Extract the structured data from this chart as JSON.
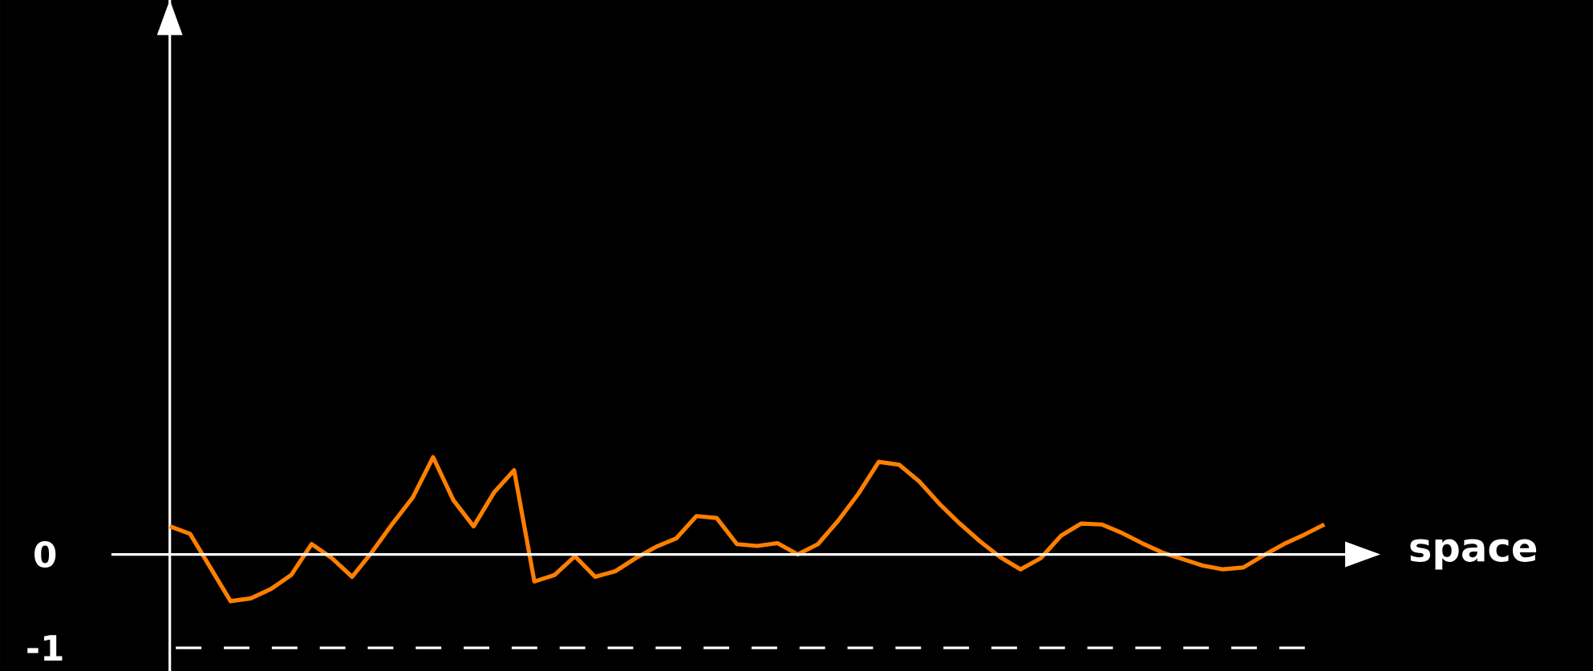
{
  "chart_data": {
    "type": "line",
    "xlabel": "space",
    "categories": [
      null,
      null,
      null,
      null,
      null,
      null,
      null,
      null,
      null,
      null,
      null,
      null,
      null,
      null,
      null,
      null,
      null,
      null,
      null,
      null,
      null,
      null,
      null,
      null,
      null,
      null,
      null,
      null,
      null,
      null,
      null,
      null,
      null,
      null,
      null,
      null,
      null,
      null,
      null,
      null,
      null,
      null,
      null,
      null,
      null,
      null,
      null,
      null,
      null,
      null,
      null,
      null,
      null,
      null,
      null,
      null,
      null,
      null
    ],
    "values": [
      0.3,
      0.22,
      -0.14,
      -0.5,
      -0.47,
      -0.37,
      -0.22,
      0.11,
      -0.04,
      -0.24,
      0.03,
      0.33,
      0.61,
      1.04,
      0.58,
      0.3,
      0.66,
      0.9,
      -0.29,
      -0.22,
      -0.02,
      -0.24,
      -0.18,
      -0.04,
      0.08,
      0.17,
      0.41,
      0.39,
      0.11,
      0.09,
      0.12,
      0.0,
      0.11,
      0.36,
      0.65,
      0.99,
      0.96,
      0.78,
      0.54,
      0.33,
      0.14,
      -0.03,
      -0.16,
      -0.04,
      0.2,
      0.33,
      0.32,
      0.23,
      0.12,
      0.02,
      -0.05,
      -0.12,
      -0.16,
      -0.14,
      -0.01,
      0.11,
      0.21,
      0.32
    ],
    "color": "#ff7f00",
    "marker": "none",
    "line_style": "solid",
    "ylim": [
      -1.25,
      5.93
    ],
    "yticks": [
      0,
      -1
    ],
    "ref_lines": [
      {
        "axis": "y",
        "value": -1,
        "color": "#ffffff",
        "line_style": "dashed"
      }
    ]
  }
}
